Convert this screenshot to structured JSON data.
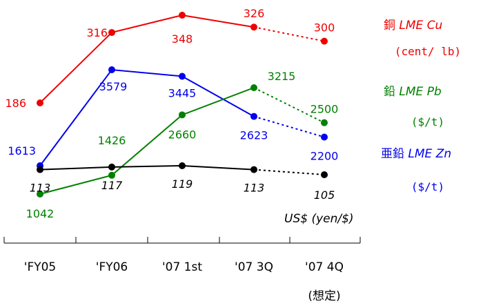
{
  "chart_data": {
    "type": "line",
    "categories": [
      "'FY05",
      "'FY06",
      "'07 1st",
      "'07 3Q",
      "'07 4Q"
    ],
    "category_note": "(想定)",
    "grid": false,
    "series": [
      {
        "name": "銅",
        "name_suffix": "LME Cu",
        "unit": "(cent/ lb)",
        "color": "#ee0000",
        "values": [
          186,
          316,
          348,
          326,
          300
        ],
        "labels": [
          "186",
          "316",
          "348",
          "326",
          "300"
        ],
        "projected_last": true
      },
      {
        "name": "亜鉛",
        "name_suffix": "LME Zn",
        "unit": "($/t)",
        "color": "#0000ee",
        "values": [
          1613,
          3579,
          3445,
          2623,
          2200
        ],
        "labels": [
          "1613",
          "3579",
          "3445",
          "2623",
          "2200"
        ],
        "projected_last": true
      },
      {
        "name": "鉛",
        "name_suffix": "LME Pb",
        "unit": "($/t)",
        "color": "#008000",
        "values": [
          1042,
          1426,
          2660,
          3215,
          2500
        ],
        "labels": [
          "1042",
          "1426",
          "2660",
          "3215",
          "2500"
        ],
        "projected_last": true
      },
      {
        "name": "US$",
        "name_suffix": "(yen/$)",
        "unit": "",
        "color": "#000000",
        "values": [
          113,
          117,
          119,
          113,
          105
        ],
        "labels": [
          "113",
          "117",
          "119",
          "113",
          "105"
        ],
        "projected_last": true
      }
    ]
  }
}
